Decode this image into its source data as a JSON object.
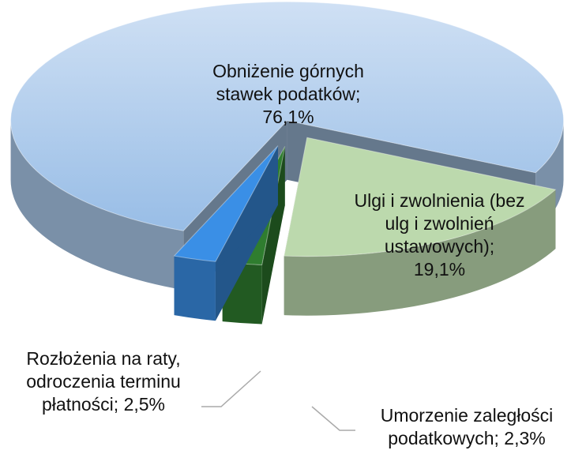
{
  "chart_data": {
    "type": "pie",
    "categories": [
      "Obniżenie górnych stawek podatków;",
      "Ulgi i zwolnienia (bez ulg i zwolnień ustawowych);",
      "Umorzenie zaległości podatkowych;",
      "Rozłożenia na raty, odroczenia terminu płatności;"
    ],
    "values": [
      76.1,
      19.1,
      2.3,
      2.5
    ],
    "value_labels": [
      "76,1%",
      "19,1%",
      "2,3%",
      "2,5%"
    ],
    "colors": [
      "#a9c8ea",
      "#bcd9ad",
      "#2f7d2f",
      "#3a8fe6"
    ]
  }
}
